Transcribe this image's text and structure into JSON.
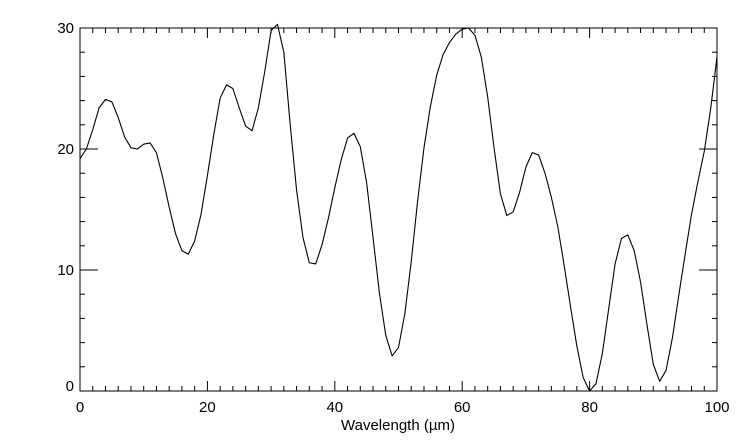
{
  "chart_data": {
    "type": "line",
    "title": "",
    "xlabel": "Wavelength (µm)",
    "ylabel": "",
    "xlim": [
      0,
      100
    ],
    "ylim": [
      0,
      30
    ],
    "xticks": [
      0,
      20,
      40,
      60,
      80,
      100
    ],
    "xtick_labels": [
      "0",
      "20",
      "40",
      "60",
      "80",
      "100"
    ],
    "yticks": [
      0,
      10,
      20,
      30
    ],
    "ytick_labels": [
      "0",
      "10",
      "20",
      "30"
    ],
    "x_minor_step": 2,
    "y_minor_step": 2,
    "grid": false,
    "legend": "none",
    "line_color": "#000000",
    "series": [
      {
        "x": [
          0,
          1,
          2,
          3,
          4,
          5,
          6,
          7,
          8,
          9,
          10,
          11,
          12,
          13,
          14,
          15,
          16,
          17,
          18,
          19,
          20,
          21,
          22,
          23,
          24,
          25,
          26,
          27,
          28,
          29,
          30,
          31,
          32,
          33,
          34,
          35,
          36,
          37,
          38,
          39,
          40,
          41,
          42,
          43,
          44,
          45,
          46,
          47,
          48,
          49,
          50,
          51,
          52,
          53,
          54,
          55,
          56,
          57,
          58,
          59,
          60,
          61,
          62,
          63,
          64,
          65,
          66,
          67,
          68,
          69,
          70,
          71,
          72,
          73,
          74,
          75,
          76,
          77,
          78,
          79,
          80,
          81,
          82,
          83,
          84,
          85,
          86,
          87,
          88,
          89,
          90,
          91,
          92,
          93,
          94,
          95,
          96,
          97,
          98,
          99,
          100
        ],
        "values": [
          19.2,
          20.0,
          21.6,
          23.4,
          24.1,
          23.9,
          22.6,
          21.0,
          20.1,
          20.0,
          20.4,
          20.5,
          19.7,
          17.6,
          15.2,
          13.0,
          11.6,
          11.3,
          12.4,
          14.6,
          17.8,
          21.2,
          24.2,
          25.3,
          25.0,
          23.4,
          21.9,
          21.5,
          23.4,
          26.4,
          29.8,
          30.3,
          28.0,
          22.0,
          16.6,
          12.7,
          10.6,
          10.5,
          12.1,
          14.3,
          16.8,
          19.1,
          20.9,
          21.3,
          20.2,
          17.2,
          12.7,
          8.1,
          4.6,
          2.9,
          3.6,
          6.4,
          10.7,
          15.7,
          20.1,
          23.5,
          26.1,
          27.8,
          28.8,
          29.5,
          29.9,
          30.0,
          29.4,
          27.6,
          24.3,
          20.1,
          16.3,
          14.5,
          14.8,
          16.4,
          18.5,
          19.7,
          19.5,
          18.0,
          16.0,
          13.6,
          10.4,
          7.0,
          3.7,
          1.1,
          0.0,
          0.6,
          3.1,
          6.8,
          10.5,
          12.6,
          12.9,
          11.6,
          9.0,
          5.5,
          2.2,
          0.8,
          1.7,
          4.4,
          7.9,
          11.3,
          14.6,
          17.3,
          19.8,
          23.3,
          27.6
        ]
      }
    ]
  }
}
